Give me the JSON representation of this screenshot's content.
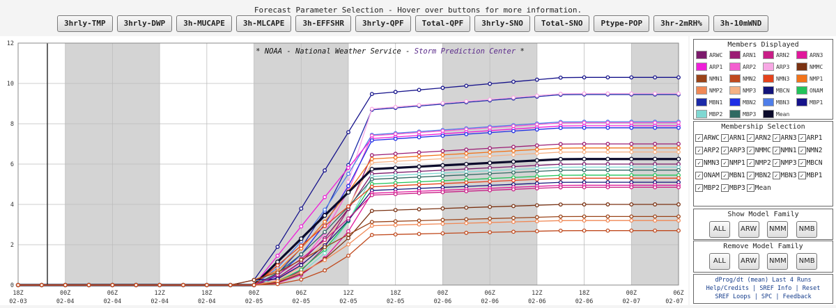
{
  "header": {
    "title": "Forecast Parameter Selection - Hover over buttons for more information.",
    "buttons": [
      "3hrly-TMP",
      "3hrly-DWP",
      "3h-MUCAPE",
      "3h-MLCAPE",
      "3h-EFFSHR",
      "3hrly-QPF",
      "Total-QPF",
      "3hrly-SNO",
      "Total-SNO",
      "Ptype-POP",
      "3hr-2mRH%",
      "3h-10mWND"
    ]
  },
  "banner": {
    "part1": "* NOAA - National Weather Service - ",
    "part2": "Storm Prediction Center",
    "part3": " *"
  },
  "members_displayed": {
    "title": "Members Displayed",
    "items": [
      {
        "label": "ARWC",
        "color": "#7b1a6b"
      },
      {
        "label": "ARN1",
        "color": "#9b1c73"
      },
      {
        "label": "ARN2",
        "color": "#c81e86"
      },
      {
        "label": "ARN3",
        "color": "#e0189b"
      },
      {
        "label": "ARP1",
        "color": "#ee1fd8"
      },
      {
        "label": "ARP2",
        "color": "#f45ed0"
      },
      {
        "label": "ARP3",
        "color": "#f7a8e4"
      },
      {
        "label": "NMMC",
        "color": "#7a3212"
      },
      {
        "label": "NMN1",
        "color": "#9a4318"
      },
      {
        "label": "NMN2",
        "color": "#c04a1e"
      },
      {
        "label": "NMN3",
        "color": "#e5431c"
      },
      {
        "label": "NMP1",
        "color": "#f2741b"
      },
      {
        "label": "NMP2",
        "color": "#f08855"
      },
      {
        "label": "NMP3",
        "color": "#f5b184"
      },
      {
        "label": "MBCN",
        "color": "#13147a"
      },
      {
        "label": "ONAM",
        "color": "#22c35a"
      },
      {
        "label": "MBN1",
        "color": "#1b2aa8"
      },
      {
        "label": "MBN2",
        "color": "#1f2ee6"
      },
      {
        "label": "MBN3",
        "color": "#4f7ee9"
      },
      {
        "label": "MBP1",
        "color": "#15128a"
      },
      {
        "label": "MBP2",
        "color": "#7fd8d2"
      },
      {
        "label": "MBP3",
        "color": "#2f6a62"
      },
      {
        "label": "Mean",
        "color": "#0a0a2a"
      }
    ]
  },
  "membership_selection": {
    "title": "Membership Selection",
    "items": [
      "ARWC",
      "ARN1",
      "ARN2",
      "ARN3",
      "ARP1",
      "ARP2",
      "ARP3",
      "NMMC",
      "NMN1",
      "NMN2",
      "NMN3",
      "NMP1",
      "NMP2",
      "NMP3",
      "MBCN",
      "ONAM",
      "MBN1",
      "MBN2",
      "MBN3",
      "MBP1",
      "MBP2",
      "MBP3",
      "Mean"
    ]
  },
  "show_family": {
    "title": "Show Model Family",
    "buttons": [
      "ALL",
      "ARW",
      "NMM",
      "NMB"
    ]
  },
  "remove_family": {
    "title": "Remove Model Family",
    "buttons": [
      "ALL",
      "ARW",
      "NMM",
      "NMB"
    ]
  },
  "links": {
    "line1": "dProg/dt (mean) Last 4 Runs",
    "line2": "Help/Credits | SREF Info | Reset",
    "line3": "SREF Loops | SPC | Feedback"
  },
  "chart_data": {
    "type": "line",
    "ylim": [
      0,
      12
    ],
    "yticks": [
      0,
      2,
      4,
      6,
      8,
      10,
      12
    ],
    "xticks": [
      {
        "hour": "18Z",
        "date": "02-03"
      },
      {
        "hour": "00Z",
        "date": "02-04"
      },
      {
        "hour": "06Z",
        "date": "02-04"
      },
      {
        "hour": "12Z",
        "date": "02-04"
      },
      {
        "hour": "18Z",
        "date": "02-04"
      },
      {
        "hour": "00Z",
        "date": "02-05"
      },
      {
        "hour": "06Z",
        "date": "02-05"
      },
      {
        "hour": "12Z",
        "date": "02-05"
      },
      {
        "hour": "18Z",
        "date": "02-05"
      },
      {
        "hour": "00Z",
        "date": "02-06"
      },
      {
        "hour": "06Z",
        "date": "02-06"
      },
      {
        "hour": "12Z",
        "date": "02-06"
      },
      {
        "hour": "18Z",
        "date": "02-06"
      },
      {
        "hour": "00Z",
        "date": "02-07"
      },
      {
        "hour": "06Z",
        "date": "02-07"
      }
    ],
    "steps_per_tick": 2,
    "series": [
      {
        "name": "MBP1",
        "color": "#15128a",
        "final": 10.3
      },
      {
        "name": "MBN1",
        "color": "#1b2aa8",
        "final": 9.45
      },
      {
        "name": "ARP3",
        "color": "#f7a8e4",
        "final": 9.5
      },
      {
        "name": "MBN3",
        "color": "#4f7ee9",
        "final": 8.1
      },
      {
        "name": "ARP2",
        "color": "#f45ed0",
        "final": 8.05
      },
      {
        "name": "ARP1",
        "color": "#ee1fd8",
        "final": 7.9
      },
      {
        "name": "MBN2",
        "color": "#1f2ee6",
        "final": 7.8
      },
      {
        "name": "ARN1",
        "color": "#9b1c73",
        "final": 7.0
      },
      {
        "name": "NMP1",
        "color": "#f2741b",
        "final": 6.8
      },
      {
        "name": "NMP3",
        "color": "#f5b184",
        "final": 6.6
      },
      {
        "name": "Mean",
        "color": "#0a0a2a",
        "final": 6.25
      },
      {
        "name": "ARWC",
        "color": "#7b1a6b",
        "final": 6.0
      },
      {
        "name": "MBP2",
        "color": "#7fd8d2",
        "final": 5.85
      },
      {
        "name": "MBP3",
        "color": "#2f6a62",
        "final": 5.7
      },
      {
        "name": "ONAM",
        "color": "#22c35a",
        "final": 5.45
      },
      {
        "name": "NMN3",
        "color": "#e5431c",
        "final": 5.3
      },
      {
        "name": "MBCN",
        "color": "#13147a",
        "final": 5.1
      },
      {
        "name": "ARN3",
        "color": "#e0189b",
        "final": 4.95
      },
      {
        "name": "ARN2",
        "color": "#c81e86",
        "final": 4.85
      },
      {
        "name": "NMMC",
        "color": "#7a3212",
        "final": 4.0
      },
      {
        "name": "NMN1",
        "color": "#9a4318",
        "final": 3.4
      },
      {
        "name": "NMP2",
        "color": "#f08855",
        "final": 3.2
      },
      {
        "name": "NMN2",
        "color": "#c04a1e",
        "final": 2.7
      }
    ]
  }
}
